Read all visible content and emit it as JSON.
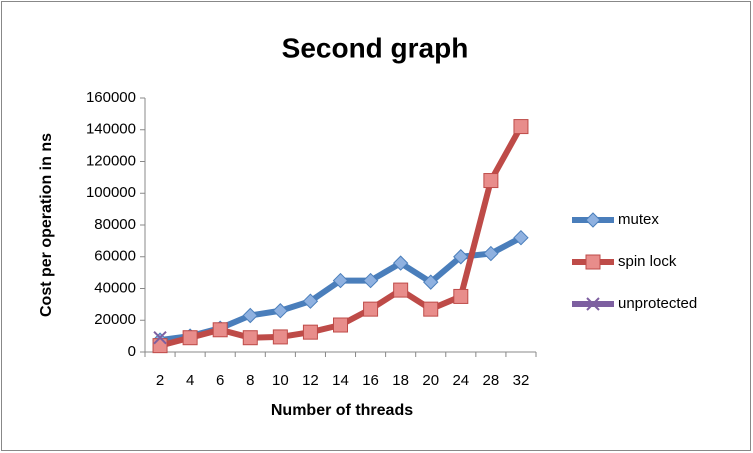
{
  "chart_data": {
    "type": "line",
    "title": "Second graph",
    "x_label": "Number of threads",
    "y_label": "Cost per operation in ns",
    "categories": [
      "2",
      "4",
      "6",
      "8",
      "10",
      "12",
      "14",
      "16",
      "18",
      "20",
      "24",
      "28",
      "32"
    ],
    "series": [
      {
        "name": "mutex",
        "color": "#4a7ebb",
        "marker": "diamond",
        "values": [
          7500,
          10000,
          15000,
          23000,
          26000,
          32000,
          45000,
          45000,
          56000,
          44000,
          60000,
          62000,
          72000
        ]
      },
      {
        "name": "spin lock",
        "color": "#be4b48",
        "marker": "square",
        "values": [
          4000,
          9000,
          14000,
          9000,
          9500,
          12500,
          17000,
          27000,
          39000,
          27000,
          35000,
          108000,
          142000
        ]
      },
      {
        "name": "unprotected",
        "color": "#7d5fa0",
        "marker": "x",
        "values": [
          9000,
          null,
          null,
          null,
          null,
          null,
          null,
          null,
          null,
          null,
          null,
          null,
          null
        ]
      }
    ],
    "ylim": [
      0,
      160000
    ],
    "yticks": [
      0,
      20000,
      40000,
      60000,
      80000,
      100000,
      120000,
      140000,
      160000
    ],
    "grid": false,
    "legend": "right"
  }
}
